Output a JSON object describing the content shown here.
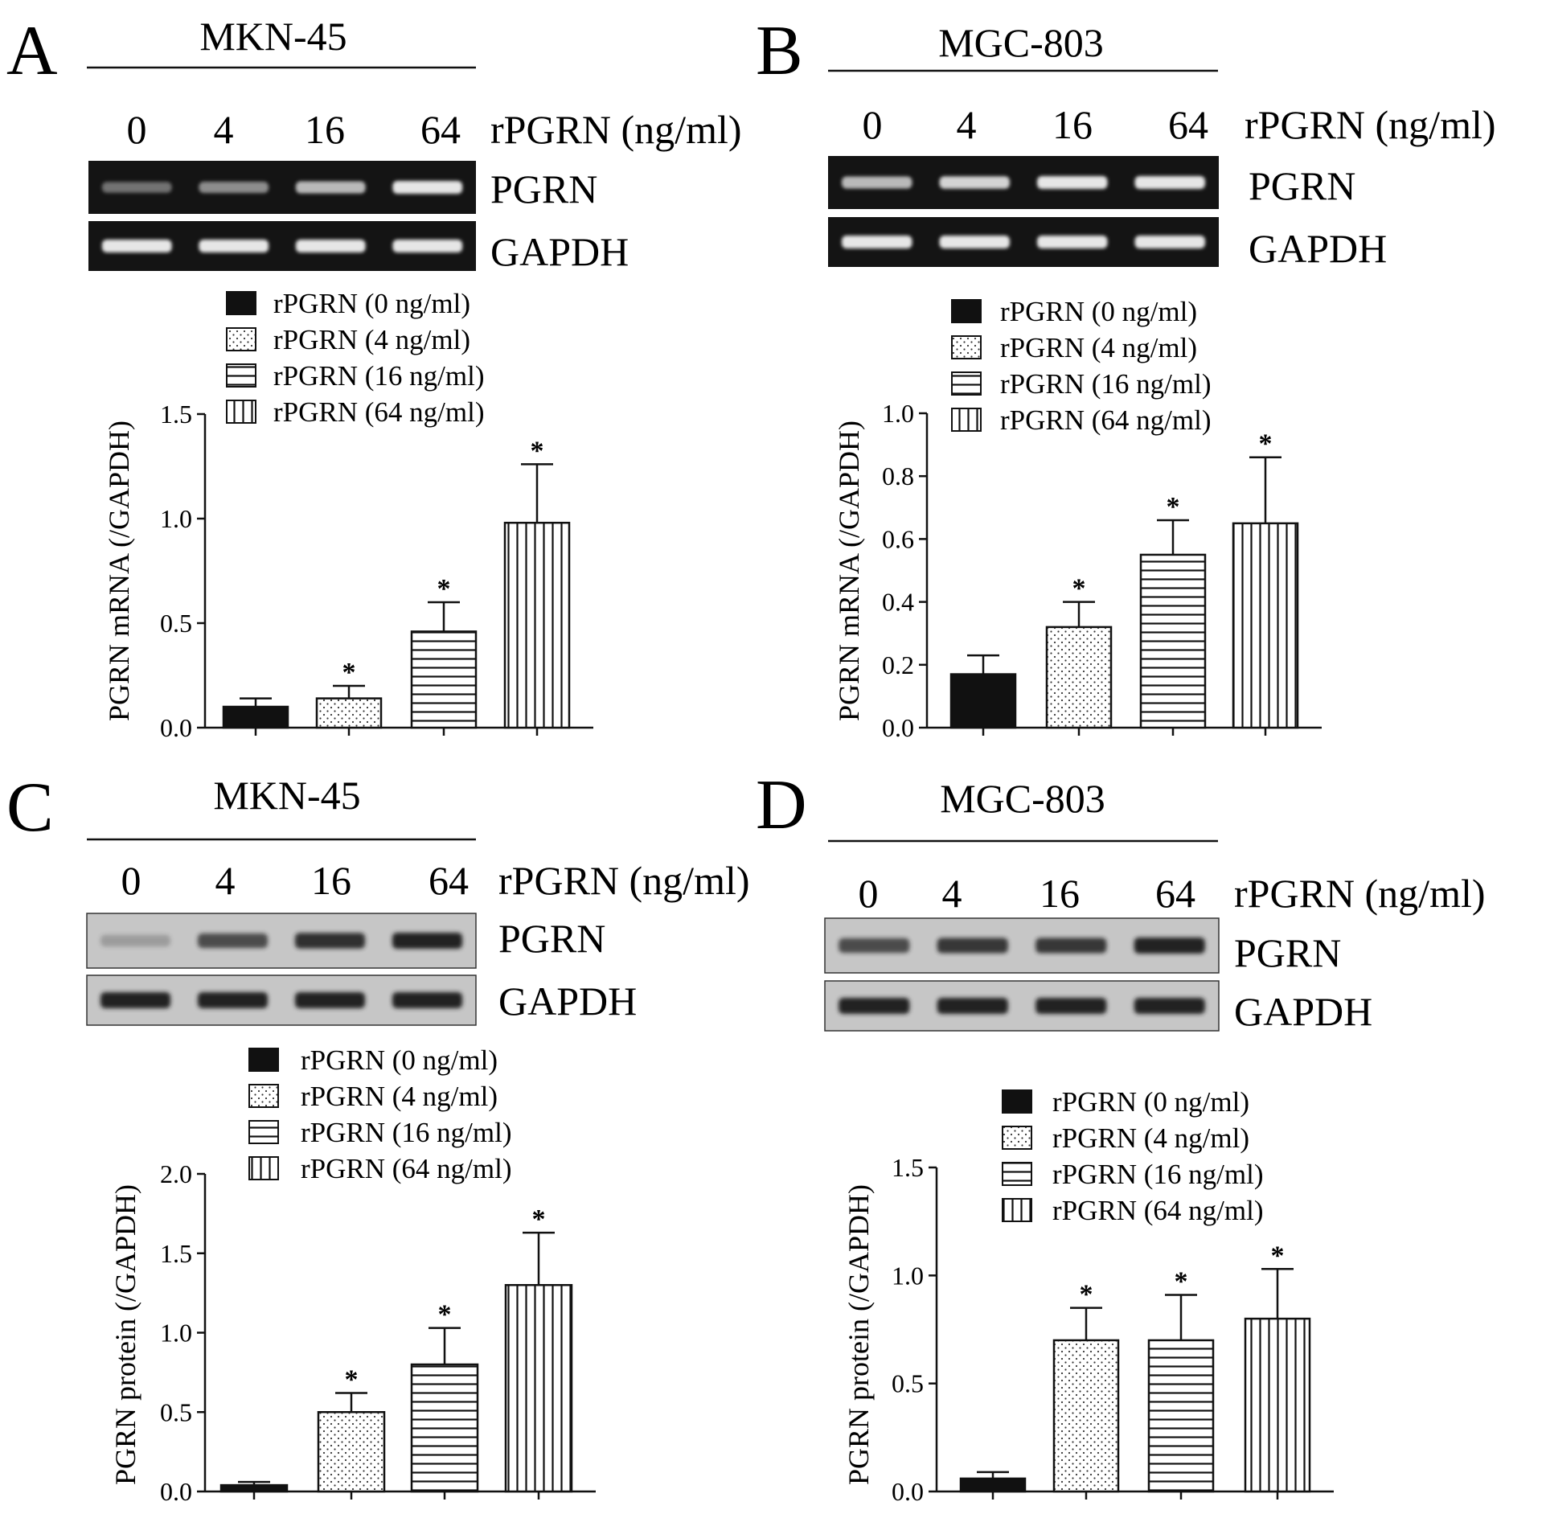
{
  "colors": {
    "ink": "#111111",
    "gel_bg": "#141414",
    "band_gel": "#e6e6e6",
    "blot_bg": "#c6c6c6",
    "band_blot": "#222222"
  },
  "panels": [
    {
      "letter": "A",
      "cell_line": "MKN-45",
      "treatment_label": "rPGRN (ng/ml)",
      "lanes": [
        "0",
        "4",
        "16",
        "64"
      ],
      "bands": [
        "PGRN",
        "GAPDH"
      ],
      "blot_style": "gel",
      "band_intensity": {
        "PGRN": [
          0.35,
          0.5,
          0.75,
          1.0
        ],
        "GAPDH": [
          1.0,
          1.0,
          1.0,
          1.0
        ]
      }
    },
    {
      "letter": "B",
      "cell_line": "MGC-803",
      "treatment_label": "rPGRN (ng/ml)",
      "lanes": [
        "0",
        "4",
        "16",
        "64"
      ],
      "bands": [
        "PGRN",
        "GAPDH"
      ],
      "blot_style": "gel",
      "band_intensity": {
        "PGRN": [
          0.75,
          0.9,
          1.0,
          1.0
        ],
        "GAPDH": [
          1.0,
          1.0,
          1.0,
          1.0
        ]
      }
    },
    {
      "letter": "C",
      "cell_line": "MKN-45",
      "treatment_label": "rPGRN (ng/ml)",
      "lanes": [
        "0",
        "4",
        "16",
        "64"
      ],
      "bands": [
        "PGRN",
        "GAPDH"
      ],
      "blot_style": "western",
      "band_intensity": {
        "PGRN": [
          0.12,
          0.7,
          0.9,
          1.0
        ],
        "GAPDH": [
          1.0,
          1.0,
          1.0,
          1.0
        ]
      }
    },
    {
      "letter": "D",
      "cell_line": "MGC-803",
      "treatment_label": "rPGRN (ng/ml)",
      "lanes": [
        "0",
        "4",
        "16",
        "64"
      ],
      "bands": [
        "PGRN",
        "GAPDH"
      ],
      "blot_style": "western",
      "band_intensity": {
        "PGRN": [
          0.7,
          0.85,
          0.85,
          1.0
        ],
        "GAPDH": [
          1.0,
          1.0,
          1.0,
          1.0
        ]
      }
    }
  ],
  "chart_data": [
    {
      "type": "bar",
      "panel": "A",
      "legend": [
        "rPGRN (0 ng/ml)",
        "rPGRN (4 ng/ml)",
        "rPGRN (16 ng/ml)",
        "rPGRN (64 ng/ml)"
      ],
      "patterns": [
        "solid",
        "dots",
        "horizontal",
        "vertical"
      ],
      "values": [
        0.1,
        0.14,
        0.46,
        0.98
      ],
      "errors": [
        0.04,
        0.06,
        0.14,
        0.28
      ],
      "significant": [
        false,
        true,
        true,
        true
      ],
      "ylabel": "PGRN mRNA (/GAPDH)",
      "ylim": [
        0,
        1.5
      ],
      "yticks": [
        "0.0",
        "0.5",
        "1.0",
        "1.5"
      ],
      "significance_mark": "*"
    },
    {
      "type": "bar",
      "panel": "B",
      "legend": [
        "rPGRN (0 ng/ml)",
        "rPGRN (4 ng/ml)",
        "rPGRN (16 ng/ml)",
        "rPGRN (64 ng/ml)"
      ],
      "patterns": [
        "solid",
        "dots",
        "horizontal",
        "vertical"
      ],
      "values": [
        0.17,
        0.32,
        0.55,
        0.65
      ],
      "errors": [
        0.06,
        0.08,
        0.11,
        0.21
      ],
      "significant": [
        false,
        true,
        true,
        true
      ],
      "ylabel": "PGRN mRNA (/GAPDH)",
      "ylim": [
        0,
        1.0
      ],
      "yticks": [
        "0.0",
        "0.2",
        "0.4",
        "0.6",
        "0.8",
        "1.0"
      ],
      "significance_mark": "*"
    },
    {
      "type": "bar",
      "panel": "C",
      "legend": [
        "rPGRN (0 ng/ml)",
        "rPGRN (4 ng/ml)",
        "rPGRN (16 ng/ml)",
        "rPGRN (64 ng/ml)"
      ],
      "patterns": [
        "solid",
        "dots",
        "horizontal",
        "vertical"
      ],
      "values": [
        0.04,
        0.5,
        0.8,
        1.3
      ],
      "errors": [
        0.02,
        0.12,
        0.23,
        0.33
      ],
      "significant": [
        false,
        true,
        true,
        true
      ],
      "ylabel": "PGRN protein (/GAPDH)",
      "ylim": [
        0,
        2.0
      ],
      "yticks": [
        "0.0",
        "0.5",
        "1.0",
        "1.5",
        "2.0"
      ],
      "significance_mark": "*"
    },
    {
      "type": "bar",
      "panel": "D",
      "legend": [
        "rPGRN (0 ng/ml)",
        "rPGRN (4 ng/ml)",
        "rPGRN (16 ng/ml)",
        "rPGRN (64 ng/ml)"
      ],
      "patterns": [
        "solid",
        "dots",
        "horizontal",
        "vertical"
      ],
      "values": [
        0.06,
        0.7,
        0.7,
        0.8
      ],
      "errors": [
        0.03,
        0.15,
        0.21,
        0.23
      ],
      "significant": [
        false,
        true,
        true,
        true
      ],
      "ylabel": "PGRN protein (/GAPDH)",
      "ylim": [
        0,
        1.5
      ],
      "yticks": [
        "0.0",
        "0.5",
        "1.0",
        "1.5"
      ],
      "significance_mark": "*"
    }
  ]
}
